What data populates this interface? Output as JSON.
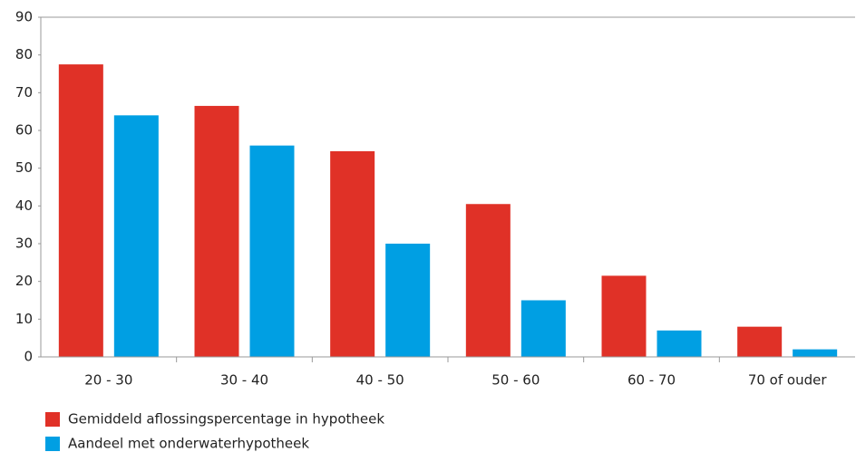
{
  "chart_data": {
    "type": "bar",
    "categories": [
      "20 - 30",
      "30 - 40",
      "40 - 50",
      "50 - 60",
      "60 - 70",
      "70 of ouder"
    ],
    "series": [
      {
        "name": "Gemiddeld aflossingspercentage in hypotheek",
        "color": "#e03127",
        "values": [
          77.5,
          66.5,
          54.5,
          40.5,
          21.5,
          8
        ]
      },
      {
        "name": "Aandeel met onderwaterhypotheek",
        "color": "#009fe3",
        "values": [
          64,
          56,
          30,
          15,
          7,
          2
        ]
      }
    ],
    "ylim": [
      0,
      90
    ],
    "yticks": [
      0,
      10,
      20,
      30,
      40,
      50,
      60,
      70,
      80,
      90
    ],
    "grid": false,
    "legend": "bottom"
  }
}
